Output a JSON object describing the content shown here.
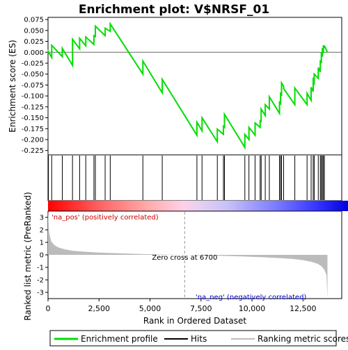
{
  "chart_data": {
    "type": "line",
    "title": "Enrichment plot: V$NRSF_01",
    "xlabel": "Rank in Ordered Dataset",
    "xlim": [
      0,
      14400
    ],
    "x_ticks": [
      0,
      2500,
      5000,
      7500,
      10000,
      12500
    ],
    "x_tick_labels": [
      "0",
      "2,500",
      "5,000",
      "7,500",
      "10,000",
      "12,500"
    ],
    "es_panel": {
      "ylabel": "Enrichment score (ES)",
      "ylim": [
        -0.235,
        0.08
      ],
      "y_ticks": [
        0.075,
        0.05,
        0.025,
        0.0,
        -0.025,
        -0.05,
        -0.075,
        -0.1,
        -0.125,
        -0.15,
        -0.175,
        -0.2,
        -0.225
      ],
      "y_tick_labels": [
        "0.075",
        "0.050",
        "0.025",
        "0.000",
        "-0.025",
        "-0.050",
        "-0.075",
        "-0.100",
        "-0.125",
        "-0.150",
        "-0.175",
        "-0.200",
        "-0.225"
      ],
      "hits": [
        20,
        180,
        700,
        1200,
        1550,
        1850,
        2250,
        2320,
        2800,
        3050,
        4650,
        5600,
        7300,
        7550,
        8300,
        8600,
        8650,
        9650,
        9850,
        10150,
        10400,
        10450,
        10650,
        10850,
        11350,
        11400,
        11450,
        11550,
        12100,
        12700,
        12900,
        13000,
        13050,
        13250,
        13350,
        13400,
        13450,
        13500,
        13550
      ],
      "profile_x": [
        0,
        20,
        20,
        180,
        180,
        700,
        700,
        1200,
        1200,
        1550,
        1550,
        1850,
        1850,
        2250,
        2250,
        2320,
        2320,
        2800,
        2800,
        3050,
        3050,
        4650,
        4650,
        5600,
        5600,
        7300,
        7300,
        7550,
        7550,
        8300,
        8300,
        8600,
        8600,
        8650,
        8650,
        9650,
        9650,
        9850,
        9850,
        10150,
        10150,
        10400,
        10400,
        10450,
        10450,
        10650,
        10650,
        10850,
        10850,
        11350,
        11350,
        11400,
        11400,
        11450,
        11450,
        11550,
        11550,
        12100,
        12100,
        12700,
        12700,
        12900,
        12900,
        13000,
        13000,
        13050,
        13050,
        13250,
        13250,
        13350,
        13350,
        13400,
        13400,
        13450,
        13450,
        13500,
        13500,
        13550,
        13550,
        13700
      ],
      "profile_y": [
        0.0,
        -0.001,
        0.001,
        -0.012,
        0.016,
        -0.01,
        0.009,
        -0.03,
        0.03,
        0.008,
        0.032,
        0.015,
        0.035,
        0.018,
        0.038,
        0.036,
        0.06,
        0.038,
        0.055,
        0.048,
        0.065,
        -0.05,
        -0.02,
        -0.093,
        -0.062,
        -0.19,
        -0.16,
        -0.18,
        -0.15,
        -0.205,
        -0.176,
        -0.188,
        -0.17,
        -0.172,
        -0.142,
        -0.218,
        -0.188,
        -0.2,
        -0.172,
        -0.19,
        -0.162,
        -0.172,
        -0.155,
        -0.16,
        -0.13,
        -0.145,
        -0.12,
        -0.13,
        -0.102,
        -0.14,
        -0.112,
        -0.12,
        -0.092,
        -0.1,
        -0.07,
        -0.078,
        -0.083,
        -0.12,
        -0.082,
        -0.12,
        -0.094,
        -0.11,
        -0.08,
        -0.09,
        -0.058,
        -0.075,
        -0.05,
        -0.06,
        -0.035,
        -0.045,
        -0.018,
        -0.025,
        0.0,
        -0.01,
        0.01,
        -0.002,
        0.016,
        0.01,
        0.015,
        0.0
      ]
    },
    "metric_panel": {
      "ylabel": "Ranked list metric (PreRanked)",
      "ylim": [
        -3.5,
        3.5
      ],
      "y_ticks": [
        3,
        2,
        1,
        0,
        -1,
        -2,
        -3
      ],
      "y_tick_labels": [
        "3",
        "2",
        "1",
        "0",
        "-1",
        "-2",
        "-3"
      ],
      "x": [
        0,
        50,
        150,
        300,
        500,
        800,
        1200,
        1800,
        2500,
        3500,
        4500,
        5500,
        6700,
        7500,
        8500,
        9500,
        10500,
        11500,
        12000,
        12500,
        12900,
        13200,
        13400,
        13550,
        13650,
        13700
      ],
      "y": [
        3.5,
        1.8,
        1.1,
        0.8,
        0.6,
        0.45,
        0.33,
        0.25,
        0.18,
        0.12,
        0.07,
        0.03,
        0.0,
        -0.04,
        -0.08,
        -0.13,
        -0.19,
        -0.27,
        -0.33,
        -0.42,
        -0.55,
        -0.7,
        -0.9,
        -1.2,
        -1.6,
        -3.5
      ],
      "zero_cross_label": "Zero cross at 6700",
      "zero_cross_x": 6700,
      "pos_label": "'na_pos' (positively correlated)",
      "neg_label": "'na_neg' (negatively correlated)"
    },
    "legend": {
      "placement": "bottom",
      "items": [
        {
          "label": "Enrichment profile",
          "color": "#00dd00"
        },
        {
          "label": "Hits",
          "color": "#000000"
        },
        {
          "label": "Ranking metric scores",
          "color": "#bbbbbb"
        }
      ]
    },
    "colors": {
      "profile": "#00dd00",
      "pos_label": "#cc0000",
      "neg_label": "#0000cc",
      "metric_fill": "#bbbbbb",
      "zero_line": "#999999"
    }
  }
}
